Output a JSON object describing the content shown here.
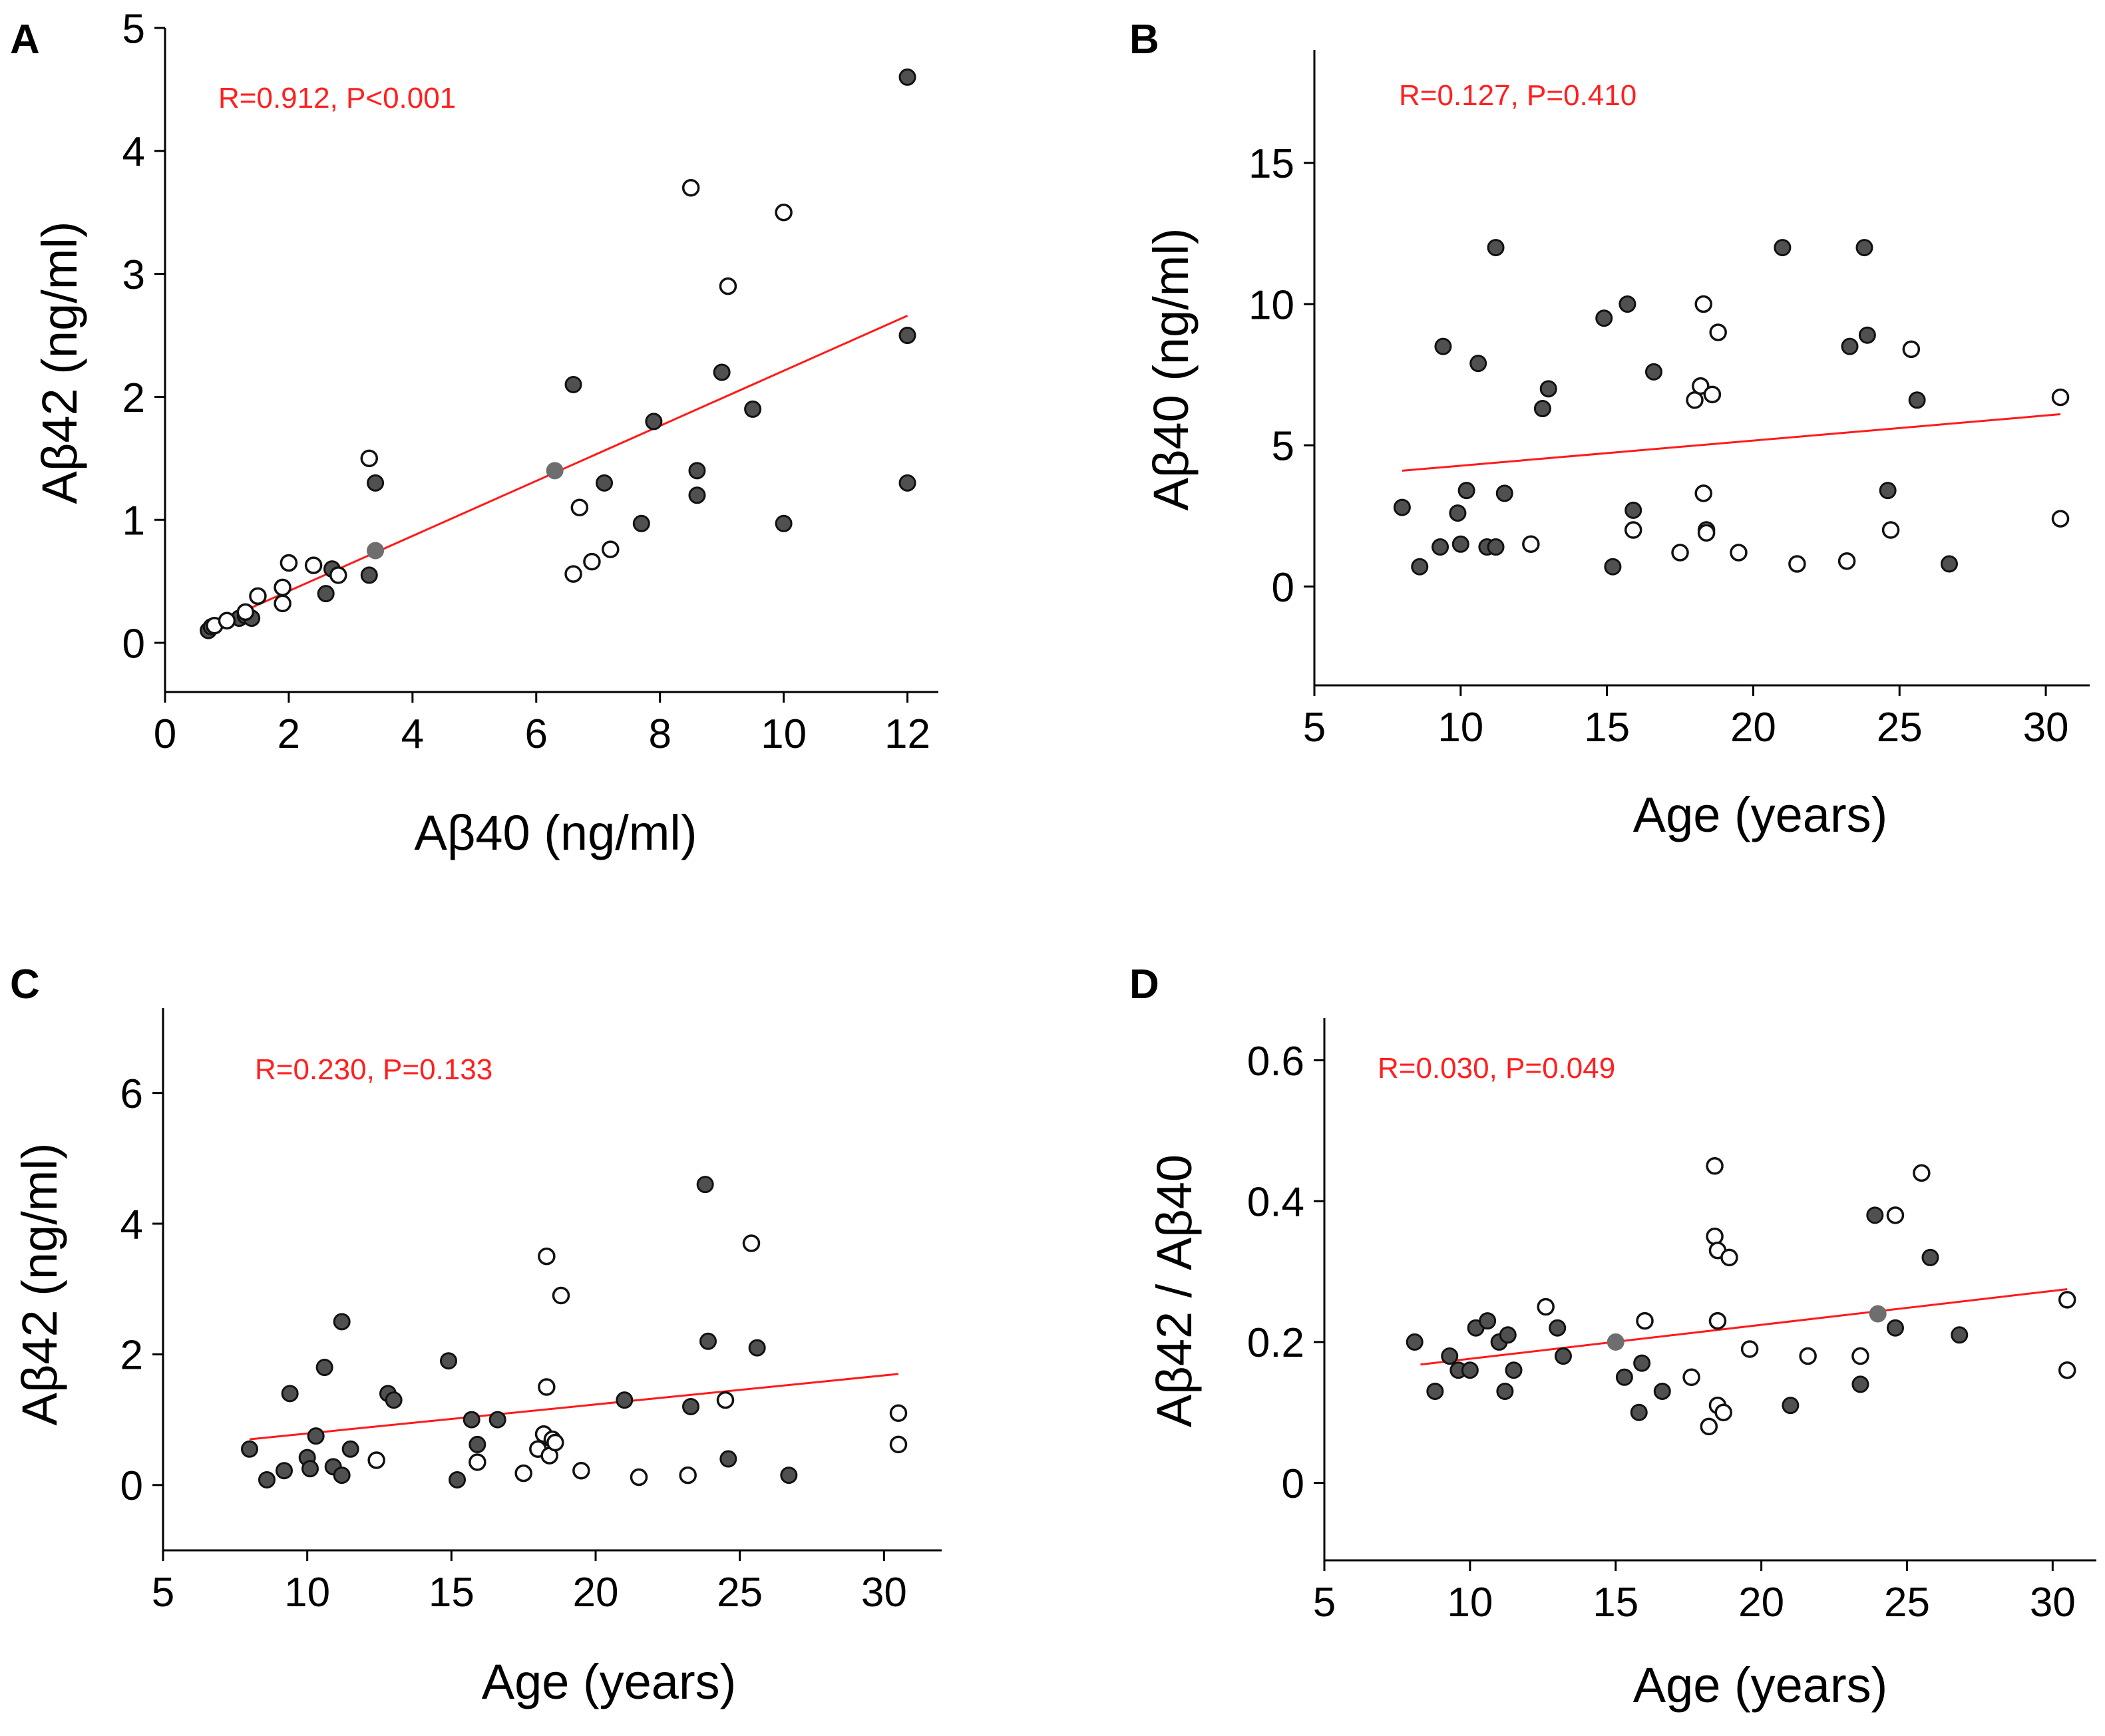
{
  "chart_data": [
    {
      "type": "scatter",
      "panel_label": "A",
      "xlabel": "Aβ40 (ng/ml)",
      "ylabel": "Aβ42 (ng/ml)",
      "xlim": [
        0,
        12.5
      ],
      "ylim": [
        -0.4,
        5
      ],
      "xticks": [
        0,
        2,
        4,
        6,
        8,
        10,
        12
      ],
      "yticks": [
        0,
        1,
        2,
        3,
        4,
        5
      ],
      "annotation": "R=0.912, P<0.001",
      "trendline": {
        "x": [
          0.7,
          12.0
        ],
        "y": [
          0.13,
          2.66
        ]
      },
      "series": [
        {
          "name": "filled",
          "points": [
            [
              0.7,
              0.1
            ],
            [
              0.75,
              0.13
            ],
            [
              1.2,
              0.2
            ],
            [
              1.3,
              0.22
            ],
            [
              1.4,
              0.2
            ],
            [
              2.6,
              0.4
            ],
            [
              2.7,
              0.6
            ],
            [
              3.3,
              0.55
            ],
            [
              3.4,
              1.3
            ],
            [
              6.6,
              2.1
            ],
            [
              7.1,
              1.3
            ],
            [
              7.7,
              0.97
            ],
            [
              7.9,
              1.8
            ],
            [
              8.6,
              1.4
            ],
            [
              8.6,
              1.2
            ],
            [
              9.0,
              2.2
            ],
            [
              9.5,
              1.9
            ],
            [
              10.0,
              0.97
            ],
            [
              12.0,
              4.6
            ],
            [
              12.0,
              2.5
            ],
            [
              12.0,
              1.3
            ]
          ]
        },
        {
          "name": "open",
          "points": [
            [
              0.8,
              0.14
            ],
            [
              1.0,
              0.18
            ],
            [
              1.3,
              0.25
            ],
            [
              1.5,
              0.38
            ],
            [
              1.9,
              0.32
            ],
            [
              1.9,
              0.45
            ],
            [
              2.0,
              0.65
            ],
            [
              2.4,
              0.63
            ],
            [
              2.8,
              0.55
            ],
            [
              3.3,
              1.5
            ],
            [
              6.6,
              0.56
            ],
            [
              6.7,
              1.1
            ],
            [
              6.9,
              0.66
            ],
            [
              7.2,
              0.76
            ],
            [
              8.5,
              3.7
            ],
            [
              9.1,
              2.9
            ],
            [
              10.0,
              3.5
            ]
          ]
        },
        {
          "name": "mean",
          "points": [
            [
              3.4,
              0.75
            ],
            [
              6.3,
              1.4
            ]
          ]
        }
      ]
    },
    {
      "type": "scatter",
      "panel_label": "B",
      "xlabel": "Age (years)",
      "ylabel": "Aβ40 (ng/ml)",
      "xlim": [
        5,
        31.5
      ],
      "ylim": [
        -3.5,
        19
      ],
      "xticks": [
        5,
        10,
        15,
        20,
        25,
        30
      ],
      "yticks": [
        0,
        5,
        10,
        15
      ],
      "annotation": "R=0.127, P=0.410",
      "trendline": {
        "x": [
          8.0,
          30.5
        ],
        "y": [
          4.1,
          6.1
        ]
      },
      "series": [
        {
          "name": "filled",
          "points": [
            [
              8.0,
              2.8
            ],
            [
              8.6,
              0.7
            ],
            [
              9.3,
              1.4
            ],
            [
              9.4,
              8.5
            ],
            [
              9.9,
              2.6
            ],
            [
              10.0,
              1.5
            ],
            [
              10.2,
              3.4
            ],
            [
              10.6,
              7.9
            ],
            [
              10.9,
              1.4
            ],
            [
              11.2,
              1.4
            ],
            [
              11.2,
              12.0
            ],
            [
              11.5,
              3.3
            ],
            [
              12.8,
              6.3
            ],
            [
              13.0,
              7.0
            ],
            [
              14.9,
              9.5
            ],
            [
              15.2,
              0.7
            ],
            [
              15.7,
              10.0
            ],
            [
              15.9,
              2.7
            ],
            [
              16.6,
              7.6
            ],
            [
              21.0,
              12.0
            ],
            [
              23.3,
              8.5
            ],
            [
              23.8,
              12.0
            ],
            [
              23.9,
              8.9
            ],
            [
              24.6,
              3.4
            ],
            [
              25.6,
              6.6
            ],
            [
              26.7,
              0.8
            ]
          ]
        },
        {
          "name": "open",
          "points": [
            [
              12.4,
              1.5
            ],
            [
              15.9,
              2.0
            ],
            [
              17.5,
              1.2
            ],
            [
              18.0,
              6.6
            ],
            [
              18.2,
              7.1
            ],
            [
              18.3,
              10.0
            ],
            [
              18.3,
              3.3
            ],
            [
              18.4,
              2.0
            ],
            [
              18.4,
              1.9
            ],
            [
              18.6,
              6.8
            ],
            [
              18.8,
              9.0
            ],
            [
              19.5,
              1.2
            ],
            [
              21.5,
              0.8
            ],
            [
              23.2,
              0.9
            ],
            [
              24.7,
              2.0
            ],
            [
              25.4,
              8.4
            ],
            [
              30.5,
              6.7
            ],
            [
              30.5,
              2.4
            ]
          ]
        }
      ]
    },
    {
      "type": "scatter",
      "panel_label": "C",
      "xlabel": "Age (years)",
      "ylabel": "Aβ42 (ng/ml)",
      "xlim": [
        5,
        32
      ],
      "ylim": [
        -1,
        7.3
      ],
      "xticks": [
        5,
        10,
        15,
        20,
        25,
        30
      ],
      "yticks": [
        0,
        2,
        4,
        6
      ],
      "annotation": "R=0.230, P=0.133",
      "trendline": {
        "x": [
          8.0,
          30.5
        ],
        "y": [
          0.7,
          1.7
        ]
      },
      "series": [
        {
          "name": "filled",
          "points": [
            [
              8.0,
              0.55
            ],
            [
              8.6,
              0.08
            ],
            [
              9.2,
              0.22
            ],
            [
              9.4,
              1.4
            ],
            [
              10.0,
              0.42
            ],
            [
              10.1,
              0.25
            ],
            [
              10.3,
              0.75
            ],
            [
              10.6,
              1.8
            ],
            [
              10.9,
              0.28
            ],
            [
              11.2,
              0.15
            ],
            [
              11.2,
              2.5
            ],
            [
              11.5,
              0.55
            ],
            [
              12.8,
              1.4
            ],
            [
              13.0,
              1.3
            ],
            [
              14.9,
              1.9
            ],
            [
              15.2,
              0.08
            ],
            [
              15.7,
              1.0
            ],
            [
              15.9,
              0.62
            ],
            [
              16.6,
              1.0
            ],
            [
              21.0,
              1.3
            ],
            [
              23.3,
              1.2
            ],
            [
              23.8,
              4.6
            ],
            [
              23.9,
              2.2
            ],
            [
              24.6,
              0.4
            ],
            [
              25.6,
              2.1
            ],
            [
              26.7,
              0.15
            ]
          ]
        },
        {
          "name": "open",
          "points": [
            [
              12.4,
              0.38
            ],
            [
              15.9,
              0.35
            ],
            [
              17.5,
              0.18
            ],
            [
              18.0,
              0.55
            ],
            [
              18.2,
              0.78
            ],
            [
              18.3,
              3.5
            ],
            [
              18.3,
              1.5
            ],
            [
              18.4,
              0.45
            ],
            [
              18.5,
              0.7
            ],
            [
              18.6,
              0.65
            ],
            [
              18.8,
              2.9
            ],
            [
              19.5,
              0.22
            ],
            [
              21.5,
              0.12
            ],
            [
              23.2,
              0.15
            ],
            [
              24.5,
              1.3
            ],
            [
              25.4,
              3.7
            ],
            [
              30.5,
              1.1
            ],
            [
              30.5,
              0.62
            ]
          ]
        }
      ]
    },
    {
      "type": "scatter",
      "panel_label": "D",
      "xlabel": "Age (years)",
      "ylabel": "Aβ42 / Aβ40",
      "xlim": [
        5,
        31.5
      ],
      "ylim": [
        -0.11,
        0.66
      ],
      "xticks": [
        5,
        10,
        15,
        20,
        25,
        30
      ],
      "yticks": [
        0,
        0.2,
        0.4,
        0.6
      ],
      "ytick_labels": [
        "0",
        "0.2",
        "0.4",
        "0.6"
      ],
      "annotation": "R=0.030, P=0.049",
      "trendline": {
        "x": [
          8.3,
          30.5
        ],
        "y": [
          0.168,
          0.275
        ]
      },
      "series": [
        {
          "name": "filled",
          "points": [
            [
              8.1,
              0.2
            ],
            [
              8.8,
              0.13
            ],
            [
              9.3,
              0.18
            ],
            [
              9.6,
              0.16
            ],
            [
              10.0,
              0.16
            ],
            [
              10.2,
              0.22
            ],
            [
              10.6,
              0.23
            ],
            [
              11.0,
              0.2
            ],
            [
              11.2,
              0.13
            ],
            [
              11.3,
              0.21
            ],
            [
              11.5,
              0.16
            ],
            [
              13.0,
              0.22
            ],
            [
              13.2,
              0.18
            ],
            [
              15.3,
              0.15
            ],
            [
              15.8,
              0.1
            ],
            [
              15.9,
              0.17
            ],
            [
              16.6,
              0.13
            ],
            [
              21.0,
              0.11
            ],
            [
              23.4,
              0.14
            ],
            [
              23.9,
              0.38
            ],
            [
              24.6,
              0.22
            ],
            [
              25.8,
              0.32
            ],
            [
              26.8,
              0.21
            ]
          ]
        },
        {
          "name": "open",
          "points": [
            [
              12.6,
              0.25
            ],
            [
              16.0,
              0.23
            ],
            [
              17.6,
              0.15
            ],
            [
              18.2,
              0.08
            ],
            [
              18.4,
              0.45
            ],
            [
              18.4,
              0.35
            ],
            [
              18.5,
              0.33
            ],
            [
              18.5,
              0.23
            ],
            [
              18.5,
              0.11
            ],
            [
              18.7,
              0.1
            ],
            [
              18.9,
              0.32
            ],
            [
              19.6,
              0.19
            ],
            [
              21.6,
              0.18
            ],
            [
              23.4,
              0.18
            ],
            [
              24.6,
              0.38
            ],
            [
              25.5,
              0.44
            ],
            [
              30.5,
              0.26
            ],
            [
              30.5,
              0.16
            ]
          ]
        },
        {
          "name": "mean",
          "points": [
            [
              15.0,
              0.2
            ],
            [
              24.0,
              0.24
            ]
          ]
        }
      ]
    }
  ]
}
